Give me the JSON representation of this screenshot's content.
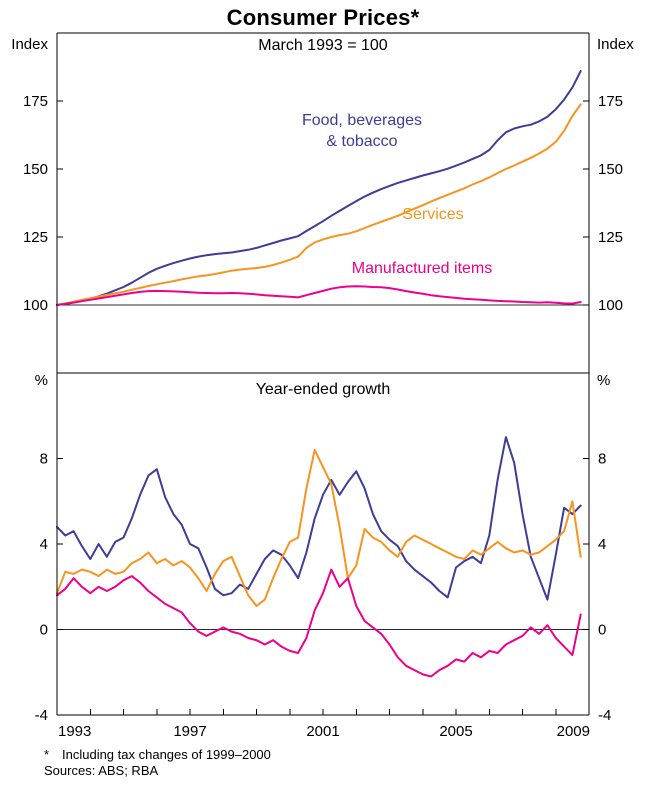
{
  "title": "Consumer Prices*",
  "footnote": {
    "marker": "*",
    "text": "Including tax changes of 1999–2000"
  },
  "sources": "Sources: ABS; RBA",
  "xticks": [
    1993,
    1997,
    2001,
    2005,
    2009
  ],
  "x_minor_ticks_every": 1,
  "chart_data": [
    {
      "type": "line",
      "panel": "top",
      "subtitle": "March 1993 = 100",
      "unit_left": "Index",
      "unit_right": "Index",
      "xlim": [
        1993,
        2009
      ],
      "ylim": [
        75,
        200
      ],
      "yticks": [
        100,
        125,
        150,
        175
      ],
      "baseline": 100,
      "x_start": 1993,
      "x_step": 0.25,
      "grid": false,
      "legend_position": "inline-labels",
      "series": [
        {
          "name": "Food, beverages & tobacco",
          "label_lines": [
            "Food, beverages",
            "& tobacco"
          ],
          "color": "#3d3d99",
          "values": [
            100,
            100.4,
            101.0,
            101.6,
            102.3,
            103.2,
            104.2,
            105.4,
            106.6,
            108.2,
            110.0,
            111.8,
            113.3,
            114.4,
            115.4,
            116.3,
            117.1,
            117.8,
            118.3,
            118.7,
            119.0,
            119.3,
            119.8,
            120.3,
            121.0,
            121.9,
            122.8,
            123.7,
            124.5,
            125.3,
            127.2,
            129.0,
            130.8,
            132.8,
            134.6,
            136.4,
            138.2,
            139.9,
            141.3,
            142.6,
            143.8,
            144.9,
            145.8,
            146.7,
            147.6,
            148.4,
            149.2,
            150.1,
            151.2,
            152.4,
            153.7,
            155.0,
            157.0,
            160.5,
            163.5,
            164.9,
            165.7,
            166.3,
            167.5,
            169.2,
            172.0,
            175.5,
            180.0,
            186.0
          ]
        },
        {
          "name": "Services",
          "label_lines": [
            "Services"
          ],
          "color": "#f7941e",
          "values": [
            100,
            100.6,
            101.2,
            101.9,
            102.5,
            103.1,
            103.7,
            104.3,
            104.9,
            105.6,
            106.3,
            107.0,
            107.6,
            108.2,
            108.8,
            109.4,
            110.0,
            110.5,
            110.9,
            111.4,
            112.0,
            112.6,
            113.0,
            113.3,
            113.6,
            114.0,
            114.7,
            115.6,
            116.6,
            117.8,
            121.0,
            123.0,
            124.1,
            125.0,
            125.7,
            126.2,
            127.1,
            128.3,
            129.5,
            130.6,
            131.7,
            132.8,
            134.1,
            135.4,
            136.7,
            138.0,
            139.3,
            140.5,
            141.7,
            142.9,
            144.3,
            145.5,
            146.9,
            148.5,
            150.0,
            151.3,
            152.7,
            154.1,
            155.7,
            157.5,
            160.0,
            164.0,
            169.5,
            173.8
          ]
        },
        {
          "name": "Manufactured items",
          "label_lines": [
            "Manufactured items"
          ],
          "color": "#ec008c",
          "values": [
            100,
            100.4,
            100.9,
            101.4,
            101.9,
            102.4,
            102.9,
            103.4,
            103.9,
            104.4,
            104.8,
            105.1,
            105.2,
            105.1,
            105.0,
            104.9,
            104.7,
            104.5,
            104.4,
            104.3,
            104.3,
            104.4,
            104.3,
            104.1,
            103.9,
            103.6,
            103.4,
            103.2,
            103.0,
            102.8,
            103.6,
            104.4,
            105.2,
            106.0,
            106.5,
            106.8,
            106.9,
            106.8,
            106.6,
            106.5,
            106.2,
            105.7,
            105.1,
            104.6,
            104.1,
            103.6,
            103.2,
            102.9,
            102.6,
            102.3,
            102.1,
            101.9,
            101.7,
            101.5,
            101.4,
            101.3,
            101.1,
            101.0,
            100.9,
            101.0,
            100.8,
            100.6,
            100.5,
            101.1
          ]
        }
      ]
    },
    {
      "type": "line",
      "panel": "bottom",
      "subtitle": "Year-ended growth",
      "unit_left": "%",
      "unit_right": "%",
      "xlim": [
        1993,
        2009
      ],
      "ylim": [
        -4,
        12
      ],
      "yticks": [
        -4,
        0,
        4,
        8
      ],
      "baseline": 0,
      "x_start": 1993,
      "x_step": 0.25,
      "grid": false,
      "legend_position": "none",
      "series": [
        {
          "name": "Food, beverages & tobacco",
          "color": "#3d3d99",
          "values": [
            4.8,
            4.4,
            4.6,
            3.9,
            3.3,
            4.0,
            3.4,
            4.1,
            4.3,
            5.2,
            6.3,
            7.2,
            7.5,
            6.2,
            5.4,
            4.9,
            4.0,
            3.8,
            2.9,
            1.9,
            1.6,
            1.7,
            2.1,
            1.9,
            2.6,
            3.3,
            3.7,
            3.5,
            3.0,
            2.4,
            3.6,
            5.2,
            6.3,
            7.0,
            6.3,
            6.9,
            7.4,
            6.6,
            5.4,
            4.6,
            4.2,
            3.9,
            3.2,
            2.8,
            2.5,
            2.2,
            1.8,
            1.5,
            2.9,
            3.2,
            3.4,
            3.1,
            4.4,
            7.0,
            9.0,
            7.8,
            5.4,
            3.4,
            2.4,
            1.4,
            3.5,
            5.7,
            5.4,
            5.8
          ]
        },
        {
          "name": "Services",
          "color": "#f7941e",
          "values": [
            1.7,
            2.7,
            2.6,
            2.8,
            2.7,
            2.5,
            2.8,
            2.6,
            2.7,
            3.1,
            3.3,
            3.6,
            3.1,
            3.3,
            3.0,
            3.2,
            2.9,
            2.4,
            1.8,
            2.6,
            3.2,
            3.4,
            2.5,
            1.6,
            1.1,
            1.4,
            2.4,
            3.3,
            4.1,
            4.3,
            6.6,
            8.4,
            7.6,
            6.8,
            4.8,
            2.4,
            3.0,
            4.7,
            4.3,
            4.1,
            3.7,
            3.4,
            4.1,
            4.4,
            4.2,
            4.0,
            3.8,
            3.6,
            3.4,
            3.3,
            3.7,
            3.5,
            3.8,
            4.1,
            3.8,
            3.6,
            3.7,
            3.5,
            3.6,
            3.9,
            4.2,
            4.6,
            6.0,
            3.4
          ]
        },
        {
          "name": "Manufactured items",
          "color": "#ec008c",
          "values": [
            1.6,
            1.9,
            2.4,
            2.0,
            1.7,
            2.0,
            1.8,
            2.0,
            2.3,
            2.5,
            2.2,
            1.8,
            1.5,
            1.2,
            1.0,
            0.8,
            0.3,
            -0.1,
            -0.3,
            -0.1,
            0.1,
            -0.1,
            -0.2,
            -0.4,
            -0.5,
            -0.7,
            -0.5,
            -0.8,
            -1.0,
            -1.1,
            -0.4,
            0.9,
            1.7,
            2.8,
            2.0,
            2.4,
            1.1,
            0.4,
            0.1,
            -0.2,
            -0.7,
            -1.3,
            -1.7,
            -1.9,
            -2.1,
            -2.2,
            -1.9,
            -1.7,
            -1.4,
            -1.5,
            -1.1,
            -1.3,
            -1.0,
            -1.1,
            -0.7,
            -0.5,
            -0.3,
            0.1,
            -0.2,
            0.2,
            -0.4,
            -0.8,
            -1.2,
            0.7
          ]
        }
      ]
    }
  ]
}
